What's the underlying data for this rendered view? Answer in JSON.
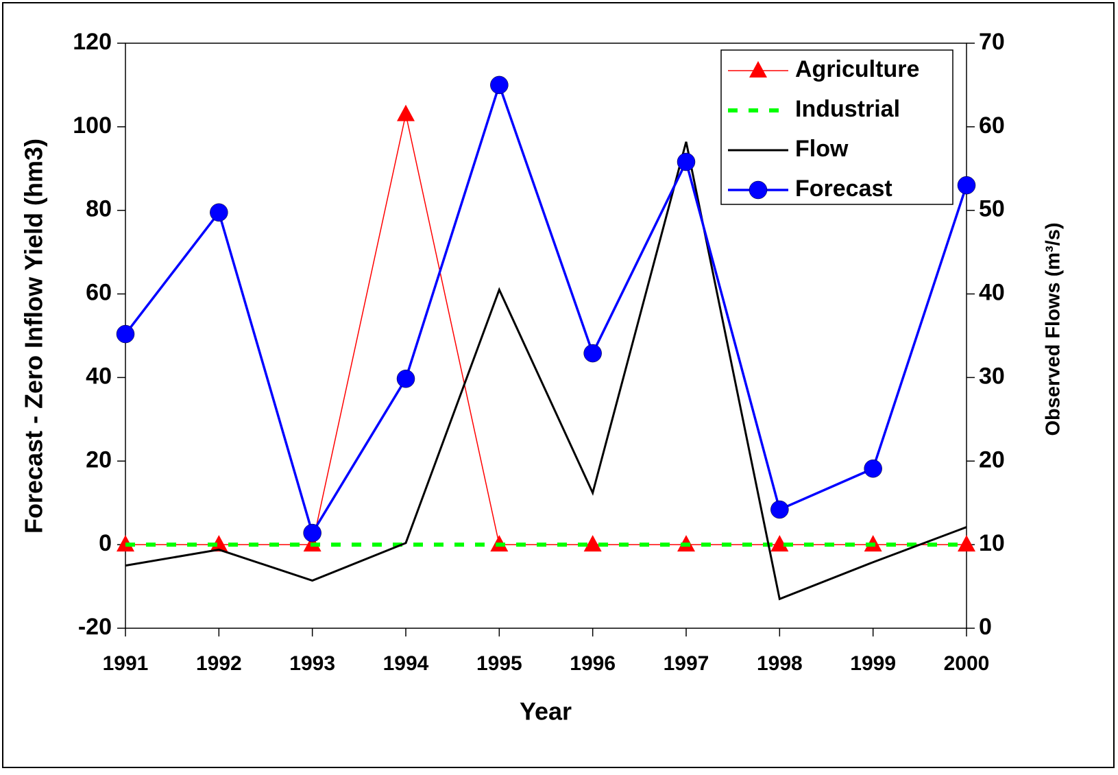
{
  "chart_data": {
    "type": "line",
    "x_label": "Year",
    "y_label": "Forecast - Zero Inflow Yield (hm3)",
    "y2_label": "Observed Flows (m³/s)",
    "x": [
      1991,
      1992,
      1993,
      1994,
      1995,
      1996,
      1997,
      1998,
      1999,
      2000
    ],
    "xlim": [
      1991,
      2000
    ],
    "xticks": [
      1991,
      1992,
      1993,
      1994,
      1995,
      1996,
      1997,
      1998,
      1999,
      2000
    ],
    "ylim": [
      -20,
      120
    ],
    "yticks": [
      -20,
      0,
      20,
      40,
      60,
      80,
      100,
      120
    ],
    "y2lim": [
      0,
      70
    ],
    "y2ticks": [
      0,
      10,
      20,
      30,
      40,
      50,
      60,
      70
    ],
    "legend": "upper right",
    "series": [
      {
        "name": "Agriculture",
        "color": "#ff0000",
        "marker": "triangle",
        "values": [
          0,
          0,
          0,
          103,
          0,
          0,
          0,
          0,
          0,
          0
        ]
      },
      {
        "name": "Industrial",
        "color": "#00ff00",
        "dash": true,
        "values": [
          0,
          0,
          0,
          0,
          0,
          0,
          0,
          0,
          0,
          0
        ]
      },
      {
        "name": "Flow",
        "color": "#000000",
        "axis": "y2",
        "values": [
          7.5,
          9.4,
          5.7,
          10.2,
          40.5,
          16.2,
          58.2,
          3.5,
          7.9,
          12.1
        ]
      },
      {
        "name": "Forecast",
        "color": "#0000ff",
        "marker": "circle",
        "values": [
          50.4,
          79.5,
          2.8,
          39.7,
          110,
          45.8,
          91.6,
          8.4,
          18.2,
          86
        ]
      }
    ]
  }
}
